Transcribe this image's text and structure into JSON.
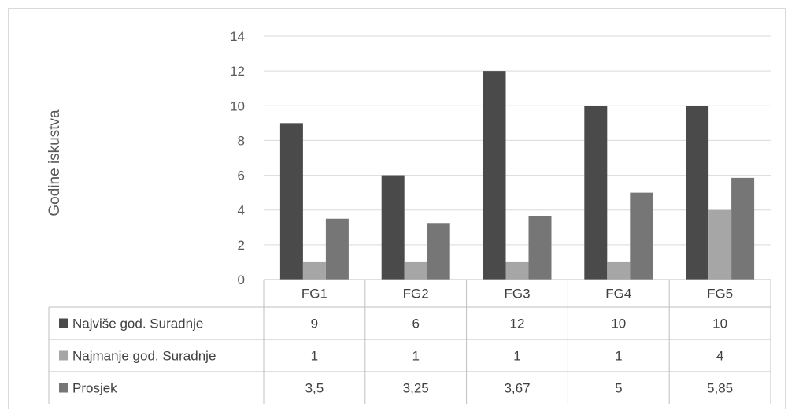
{
  "chart_data": {
    "type": "bar",
    "title": "",
    "xlabel": "",
    "ylabel": "Godine iskustva",
    "ylim": [
      0,
      14
    ],
    "yticks": [
      "0",
      "2",
      "4",
      "6",
      "8",
      "10",
      "12",
      "14"
    ],
    "grid": true,
    "legend": "data-table",
    "categories": [
      "FG1",
      "FG2",
      "FG3",
      "FG4",
      "FG5"
    ],
    "series": [
      {
        "name": "Najviše god. Suradnje",
        "values": [
          9,
          6,
          12,
          10,
          10
        ],
        "labels": [
          "9",
          "6",
          "12",
          "10",
          "10"
        ],
        "color": "#4a4a4a"
      },
      {
        "name": "Najmanje god. Suradnje",
        "values": [
          1,
          1,
          1,
          1,
          4
        ],
        "labels": [
          "1",
          "1",
          "1",
          "1",
          "4"
        ],
        "color": "#a6a6a6"
      },
      {
        "name": "Prosjek",
        "values": [
          3.5,
          3.25,
          3.67,
          5,
          5.85
        ],
        "labels": [
          "3,5",
          "3,25",
          "3,67",
          "5",
          "5,85"
        ],
        "color": "#767676"
      }
    ]
  },
  "colors": {
    "gridline": "#d9d9d9",
    "table_border": "#bfbfbf"
  }
}
